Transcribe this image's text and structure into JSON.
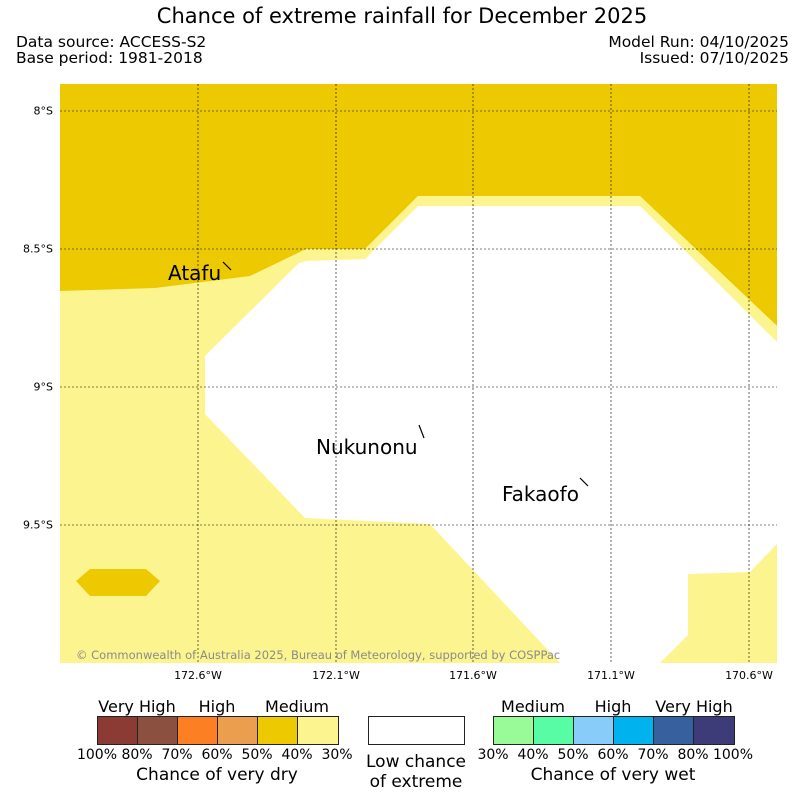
{
  "header": {
    "title": "Chance of extreme rainfall for December 2025",
    "data_source": "Data source: ACCESS-S2",
    "base_period": "Base period: 1981-2018",
    "model_run": "Model Run: 04/10/2025",
    "issued": "Issued: 07/10/2025"
  },
  "map": {
    "lat_labels": [
      "8°S",
      "8.5°S",
      "9°S",
      "9.5°S"
    ],
    "lon_labels": [
      "172.6°W",
      "172.1°W",
      "171.6°W",
      "171.1°W",
      "170.6°W"
    ],
    "places": [
      "Atafu",
      "Nukunonu",
      "Fakaofo"
    ],
    "copyright": "© Commonwealth of Australia 2025, Bureau of Meteorology, supported by COSPPac",
    "colors": {
      "very_dry_40_50": "#ecc900",
      "dry_30_40": "#fcf58f",
      "low_chance": "#ffffff"
    }
  },
  "legend": {
    "dry": {
      "categories": [
        "Very High",
        "High",
        "Medium"
      ],
      "ticks": [
        "100%",
        "80%",
        "70%",
        "60%",
        "50%",
        "40%",
        "30%"
      ],
      "colors": [
        "#8b3b34",
        "#8b5040",
        "#fd7f23",
        "#eb9e4d",
        "#ecc900",
        "#fcf58f"
      ],
      "caption": "Chance of very dry"
    },
    "neutral": {
      "caption_line1": "Low chance",
      "caption_line2": "of extreme"
    },
    "wet": {
      "categories": [
        "Medium",
        "High",
        "Very High"
      ],
      "ticks": [
        "30%",
        "40%",
        "50%",
        "60%",
        "70%",
        "80%",
        "100%"
      ],
      "colors": [
        "#98fb98",
        "#58fca5",
        "#88cdfa",
        "#00b2ee",
        "#37609e",
        "#3d3b78"
      ],
      "caption": "Chance of very wet"
    }
  }
}
